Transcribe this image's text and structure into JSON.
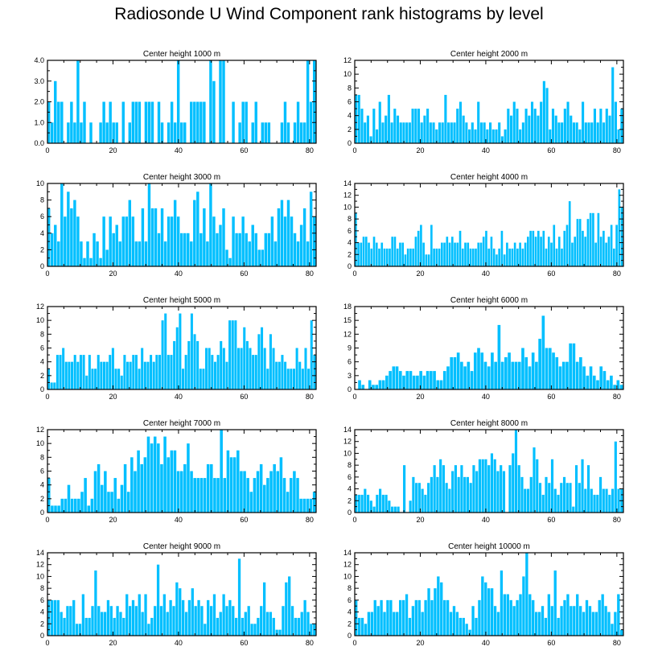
{
  "title": "Radiosonde U Wind Component rank histograms by level",
  "colors": {
    "bar": "#00bfff",
    "axis": "#000000"
  },
  "chart_data": [
    {
      "type": "bar",
      "title": "Center height 1000 m",
      "xlim": [
        0,
        82
      ],
      "ylim": [
        0,
        4
      ],
      "xticks": [
        0,
        20,
        40,
        60,
        80
      ],
      "yticks": [
        0,
        1,
        2,
        3,
        4
      ],
      "ytick_labels": [
        "0.0",
        "1.0",
        "2.0",
        "3.0",
        "4.0"
      ],
      "values": [
        2,
        1,
        3,
        2,
        2,
        0,
        1,
        2,
        1,
        4,
        1,
        2,
        0,
        1,
        0,
        0,
        1,
        2,
        1,
        2,
        1,
        1,
        0,
        2,
        0,
        1,
        2,
        2,
        2,
        0,
        2,
        2,
        2,
        0,
        2,
        1,
        0,
        1,
        2,
        1,
        4,
        1,
        1,
        0,
        2,
        2,
        2,
        2,
        2,
        0,
        4,
        3,
        0,
        4,
        4,
        0,
        0,
        2,
        0,
        1,
        2,
        2,
        0,
        1,
        2,
        0,
        1,
        1,
        1,
        0,
        0,
        0,
        1,
        2,
        1,
        0,
        1,
        2,
        1,
        1,
        4,
        2,
        4
      ]
    },
    {
      "type": "bar",
      "title": "Center height 2000 m",
      "xlim": [
        0,
        82
      ],
      "ylim": [
        0,
        12
      ],
      "xticks": [
        0,
        20,
        40,
        60,
        80
      ],
      "yticks": [
        0,
        2,
        4,
        6,
        8,
        10,
        12
      ],
      "values": [
        7,
        7,
        5,
        3,
        4,
        1,
        5,
        2,
        6,
        3,
        4,
        7,
        3,
        5,
        4,
        3,
        3,
        3,
        3,
        5,
        5,
        5,
        3,
        4,
        5,
        3,
        3,
        2,
        3,
        3,
        7,
        3,
        3,
        3,
        5,
        6,
        4,
        3,
        2,
        3,
        2,
        6,
        3,
        3,
        2,
        3,
        2,
        2,
        3,
        1,
        2,
        5,
        4,
        6,
        5,
        2,
        3,
        5,
        4,
        6,
        5,
        4,
        6,
        9,
        8,
        2,
        5,
        4,
        3,
        3,
        5,
        6,
        4,
        3,
        3,
        2,
        6,
        3,
        3,
        3,
        5,
        3,
        5,
        3,
        5,
        4,
        11,
        6,
        2,
        5
      ]
    },
    {
      "type": "bar",
      "title": "Center height 3000 m",
      "xlim": [
        0,
        82
      ],
      "ylim": [
        0,
        10
      ],
      "xticks": [
        0,
        20,
        40,
        60,
        80
      ],
      "yticks": [
        0,
        2,
        4,
        6,
        8,
        10
      ],
      "values": [
        7,
        4,
        5,
        3,
        10,
        6,
        9,
        7,
        8,
        6,
        3,
        1,
        3,
        1,
        4,
        3,
        1,
        6,
        2,
        6,
        4,
        5,
        3,
        6,
        6,
        8,
        6,
        3,
        3,
        7,
        3,
        10,
        7,
        7,
        4,
        7,
        3,
        6,
        6,
        8,
        6,
        4,
        4,
        4,
        3,
        8,
        9,
        4,
        7,
        3,
        10,
        6,
        4,
        5,
        7,
        2,
        1,
        6,
        4,
        4,
        6,
        4,
        3,
        5,
        4,
        2,
        2,
        4,
        4,
        6,
        3,
        7,
        8,
        6,
        8,
        6,
        4,
        3,
        5,
        7,
        3,
        9,
        6
      ]
    },
    {
      "type": "bar",
      "title": "Center height 4000 m",
      "xlim": [
        0,
        82
      ],
      "ylim": [
        0,
        14
      ],
      "xticks": [
        0,
        20,
        40,
        60,
        80
      ],
      "yticks": [
        0,
        2,
        4,
        6,
        8,
        10,
        12,
        14
      ],
      "values": [
        9,
        4,
        4,
        5,
        5,
        4,
        3,
        5,
        4,
        3,
        4,
        3,
        3,
        3,
        5,
        5,
        3,
        4,
        4,
        2,
        3,
        3,
        3,
        5,
        6,
        7,
        4,
        2,
        2,
        7,
        3,
        3,
        3,
        4,
        4,
        5,
        4,
        5,
        4,
        4,
        6,
        3,
        4,
        4,
        3,
        3,
        3,
        4,
        4,
        5,
        6,
        3,
        5,
        3,
        2,
        3,
        6,
        2,
        4,
        3,
        3,
        4,
        3,
        4,
        3,
        4,
        5,
        6,
        6,
        5,
        6,
        5,
        6,
        3,
        5,
        4,
        7,
        3,
        5,
        3,
        6,
        7,
        11,
        4,
        5,
        8,
        8,
        6,
        5,
        8,
        9,
        9,
        4,
        9,
        5,
        6,
        4,
        5,
        7,
        3,
        7,
        13,
        10
      ]
    },
    {
      "type": "bar",
      "title": "Center height 5000 m",
      "xlim": [
        0,
        82
      ],
      "ylim": [
        0,
        12
      ],
      "xticks": [
        0,
        20,
        40,
        60,
        80
      ],
      "yticks": [
        0,
        2,
        4,
        6,
        8,
        10,
        12
      ],
      "values": [
        3,
        1,
        1,
        5,
        5,
        6,
        4,
        4,
        4,
        5,
        4,
        5,
        5,
        2,
        5,
        3,
        3,
        5,
        4,
        4,
        4,
        5,
        6,
        3,
        3,
        2,
        5,
        4,
        4,
        5,
        5,
        3,
        6,
        4,
        4,
        5,
        4,
        5,
        5,
        10,
        11,
        5,
        5,
        7,
        9,
        11,
        3,
        5,
        7,
        11,
        8,
        7,
        3,
        3,
        6,
        6,
        5,
        4,
        5,
        7,
        6,
        4,
        10,
        10,
        10,
        6,
        6,
        9,
        7,
        6,
        5,
        5,
        8,
        9,
        6,
        3,
        8,
        6,
        4,
        4,
        5,
        4,
        3,
        3,
        3,
        6,
        4,
        3,
        6,
        3,
        10,
        5
      ]
    },
    {
      "type": "bar",
      "title": "Center height 6000 m",
      "xlim": [
        0,
        82
      ],
      "ylim": [
        0,
        18
      ],
      "xticks": [
        0,
        20,
        40,
        60,
        80
      ],
      "yticks": [
        0,
        3,
        6,
        9,
        12,
        15,
        18
      ],
      "values": [
        0,
        2,
        1,
        0,
        2,
        1,
        1,
        2,
        2,
        3,
        4,
        5,
        5,
        4,
        3,
        4,
        4,
        3,
        3,
        4,
        3,
        4,
        4,
        4,
        2,
        2,
        4,
        5,
        7,
        7,
        8,
        6,
        5,
        6,
        4,
        8,
        9,
        8,
        6,
        5,
        8,
        6,
        14,
        6,
        7,
        8,
        6,
        6,
        6,
        9,
        7,
        5,
        8,
        6,
        11,
        16,
        9,
        9,
        8,
        7,
        5,
        6,
        6,
        10,
        10,
        6,
        7,
        5,
        3,
        5,
        3,
        2,
        5,
        4,
        2,
        3,
        1,
        2,
        1
      ]
    },
    {
      "type": "bar",
      "title": "Center height 7000 m",
      "xlim": [
        0,
        82
      ],
      "ylim": [
        0,
        12
      ],
      "xticks": [
        0,
        20,
        40,
        60,
        80
      ],
      "yticks": [
        0,
        2,
        4,
        6,
        8,
        10,
        12
      ],
      "values": [
        5,
        1,
        1,
        1,
        2,
        2,
        4,
        2,
        2,
        2,
        3,
        5,
        1,
        2,
        6,
        7,
        4,
        6,
        3,
        3,
        5,
        2,
        4,
        7,
        3,
        8,
        6,
        9,
        7,
        8,
        11,
        10,
        11,
        10,
        7,
        11,
        8,
        9,
        9,
        6,
        6,
        7,
        10,
        6,
        5,
        5,
        5,
        5,
        7,
        7,
        5,
        5,
        12,
        5,
        9,
        8,
        8,
        9,
        6,
        6,
        5,
        3,
        5,
        6,
        7,
        4,
        5,
        6,
        7,
        6,
        8,
        5,
        3,
        5,
        6,
        5,
        2,
        2,
        2,
        2,
        3
      ]
    },
    {
      "type": "bar",
      "title": "Center height 8000 m",
      "xlim": [
        0,
        82
      ],
      "ylim": [
        0,
        14
      ],
      "xticks": [
        0,
        20,
        40,
        60,
        80
      ],
      "yticks": [
        0,
        2,
        4,
        6,
        8,
        10,
        12,
        14
      ],
      "values": [
        3,
        3,
        3,
        4,
        3,
        2,
        1,
        3,
        4,
        3,
        3,
        2,
        1,
        1,
        1,
        0,
        8,
        0,
        2,
        6,
        5,
        5,
        4,
        3,
        5,
        6,
        8,
        6,
        9,
        8,
        5,
        4,
        7,
        8,
        6,
        8,
        6,
        6,
        5,
        8,
        7,
        9,
        9,
        9,
        8,
        10,
        9,
        7,
        8,
        7,
        0,
        8,
        10,
        14,
        8,
        6,
        4,
        4,
        6,
        11,
        9,
        5,
        3,
        6,
        5,
        9,
        4,
        3,
        5,
        6,
        5,
        5,
        1,
        8,
        5,
        9,
        4,
        8,
        4,
        3,
        3,
        6,
        4,
        4,
        3,
        4,
        12,
        4,
        4
      ]
    },
    {
      "type": "bar",
      "title": "Center height 9000 m",
      "xlim": [
        0,
        82
      ],
      "ylim": [
        0,
        14
      ],
      "xticks": [
        0,
        20,
        40,
        60,
        80
      ],
      "yticks": [
        0,
        2,
        4,
        6,
        8,
        10,
        12,
        14
      ],
      "values": [
        6,
        6,
        6,
        6,
        4,
        3,
        5,
        5,
        6,
        2,
        2,
        7,
        3,
        3,
        5,
        11,
        5,
        4,
        4,
        6,
        5,
        3,
        5,
        4,
        3,
        7,
        5,
        6,
        5,
        7,
        4,
        7,
        2,
        3,
        5,
        12,
        5,
        7,
        4,
        6,
        5,
        9,
        8,
        6,
        4,
        6,
        8,
        5,
        6,
        5,
        2,
        6,
        5,
        7,
        3,
        4,
        7,
        5,
        6,
        5,
        3,
        13,
        3,
        4,
        5,
        2,
        2,
        3,
        5,
        9,
        4,
        4,
        3,
        1,
        1,
        5,
        9,
        10,
        5,
        3,
        3,
        4,
        6,
        4,
        2,
        2
      ]
    },
    {
      "type": "bar",
      "title": "Center height 10000 m",
      "xlim": [
        0,
        82
      ],
      "ylim": [
        0,
        14
      ],
      "xticks": [
        0,
        20,
        40,
        60,
        80
      ],
      "yticks": [
        0,
        2,
        4,
        6,
        8,
        10,
        12,
        14
      ],
      "values": [
        6,
        3,
        3,
        2,
        4,
        4,
        6,
        5,
        6,
        4,
        6,
        6,
        4,
        4,
        6,
        6,
        7,
        3,
        5,
        6,
        6,
        4,
        6,
        8,
        6,
        8,
        10,
        9,
        6,
        6,
        4,
        5,
        4,
        3,
        3,
        2,
        1,
        5,
        3,
        6,
        10,
        9,
        8,
        8,
        5,
        4,
        11,
        7,
        7,
        6,
        5,
        6,
        7,
        10,
        14,
        7,
        6,
        4,
        4,
        5,
        3,
        7,
        5,
        11,
        3,
        5,
        6,
        7,
        5,
        5,
        7,
        5,
        4,
        6,
        5,
        4,
        4,
        6,
        7,
        5,
        4,
        2,
        4,
        7,
        1
      ]
    }
  ]
}
